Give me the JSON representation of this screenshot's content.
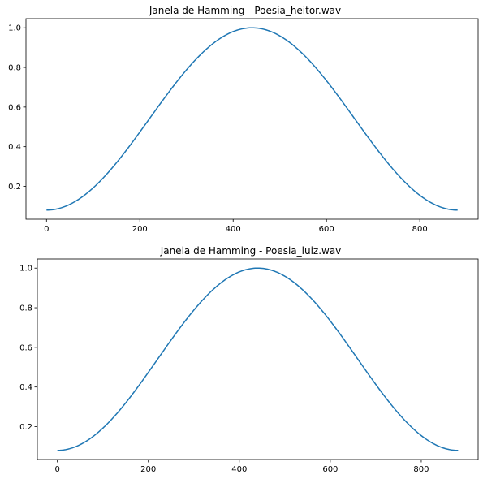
{
  "chart_data": [
    {
      "type": "line",
      "title": "Janela de Hamming - Poesia_heitor.wav",
      "xlabel": "",
      "ylabel": "",
      "window": "hamming",
      "n_points": 882,
      "x_range": [
        0,
        881
      ],
      "y_range": [
        0.08,
        1.0
      ],
      "xlim": [
        -44,
        925
      ],
      "ylim": [
        0.034,
        1.046
      ],
      "xticks": [
        0,
        200,
        400,
        600,
        800
      ],
      "xtick_labels": [
        "0",
        "200",
        "400",
        "600",
        "800"
      ],
      "yticks": [
        0.2,
        0.4,
        0.6,
        0.8,
        1.0
      ],
      "ytick_labels": [
        "0.2",
        "0.4",
        "0.6",
        "0.8",
        "1.0"
      ],
      "series": [
        {
          "color": "#1f77b4",
          "x": [
            0,
            44,
            88,
            132,
            176,
            220,
            264,
            308,
            352,
            396,
            440,
            485,
            529,
            573,
            617,
            661,
            705,
            749,
            793,
            837,
            881
          ],
          "y": [
            0.08,
            0.102,
            0.168,
            0.271,
            0.398,
            0.54,
            0.682,
            0.809,
            0.912,
            0.978,
            1.0,
            0.978,
            0.912,
            0.809,
            0.682,
            0.54,
            0.398,
            0.271,
            0.168,
            0.102,
            0.08
          ]
        }
      ],
      "grid": false
    },
    {
      "type": "line",
      "title": "Janela de Hamming - Poesia_luiz.wav",
      "xlabel": "",
      "ylabel": "",
      "window": "hamming",
      "n_points": 882,
      "x_range": [
        0,
        881
      ],
      "y_range": [
        0.08,
        1.0
      ],
      "xlim": [
        -44,
        925
      ],
      "ylim": [
        0.034,
        1.046
      ],
      "xticks": [
        0,
        200,
        400,
        600,
        800
      ],
      "xtick_labels": [
        "0",
        "200",
        "400",
        "600",
        "800"
      ],
      "yticks": [
        0.2,
        0.4,
        0.6,
        0.8,
        1.0
      ],
      "ytick_labels": [
        "0.2",
        "0.4",
        "0.6",
        "0.8",
        "1.0"
      ],
      "series": [
        {
          "color": "#1f77b4",
          "x": [
            0,
            44,
            88,
            132,
            176,
            220,
            264,
            308,
            352,
            396,
            440,
            485,
            529,
            573,
            617,
            661,
            705,
            749,
            793,
            837,
            881
          ],
          "y": [
            0.08,
            0.102,
            0.168,
            0.271,
            0.398,
            0.54,
            0.682,
            0.809,
            0.912,
            0.978,
            1.0,
            0.978,
            0.912,
            0.809,
            0.682,
            0.54,
            0.398,
            0.271,
            0.168,
            0.102,
            0.08
          ]
        }
      ],
      "grid": false
    }
  ]
}
